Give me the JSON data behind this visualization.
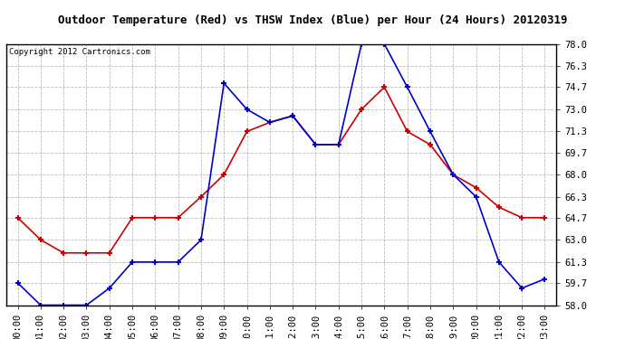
{
  "title": "Outdoor Temperature (Red) vs THSW Index (Blue) per Hour (24 Hours) 20120319",
  "copyright": "Copyright 2012 Cartronics.com",
  "hours": [
    "00:00",
    "01:00",
    "02:00",
    "03:00",
    "04:00",
    "05:00",
    "06:00",
    "07:00",
    "08:00",
    "09:00",
    "10:00",
    "11:00",
    "12:00",
    "13:00",
    "14:00",
    "15:00",
    "16:00",
    "17:00",
    "18:00",
    "19:00",
    "20:00",
    "21:00",
    "22:00",
    "23:00"
  ],
  "red_temp": [
    64.7,
    63.0,
    62.0,
    62.0,
    62.0,
    64.7,
    64.7,
    64.7,
    66.3,
    68.0,
    71.3,
    72.0,
    72.5,
    70.3,
    70.3,
    73.0,
    74.7,
    71.3,
    70.3,
    68.0,
    67.0,
    65.5,
    64.7,
    64.7
  ],
  "blue_thsw": [
    59.7,
    58.0,
    58.0,
    58.0,
    59.3,
    61.3,
    61.3,
    61.3,
    63.0,
    75.0,
    73.0,
    72.0,
    72.5,
    70.3,
    70.3,
    78.0,
    78.0,
    74.7,
    71.3,
    68.0,
    66.3,
    61.3,
    59.3,
    60.0
  ],
  "ylim": [
    58.0,
    78.0
  ],
  "yticks": [
    58.0,
    59.7,
    61.3,
    63.0,
    64.7,
    66.3,
    68.0,
    69.7,
    71.3,
    73.0,
    74.7,
    76.3,
    78.0
  ],
  "red_color": "#cc0000",
  "blue_color": "#0000cc",
  "grid_color": "#aaaaaa",
  "bg_color": "#ffffff",
  "title_fontsize": 9.0,
  "copyright_fontsize": 6.5,
  "tick_fontsize": 7.5
}
